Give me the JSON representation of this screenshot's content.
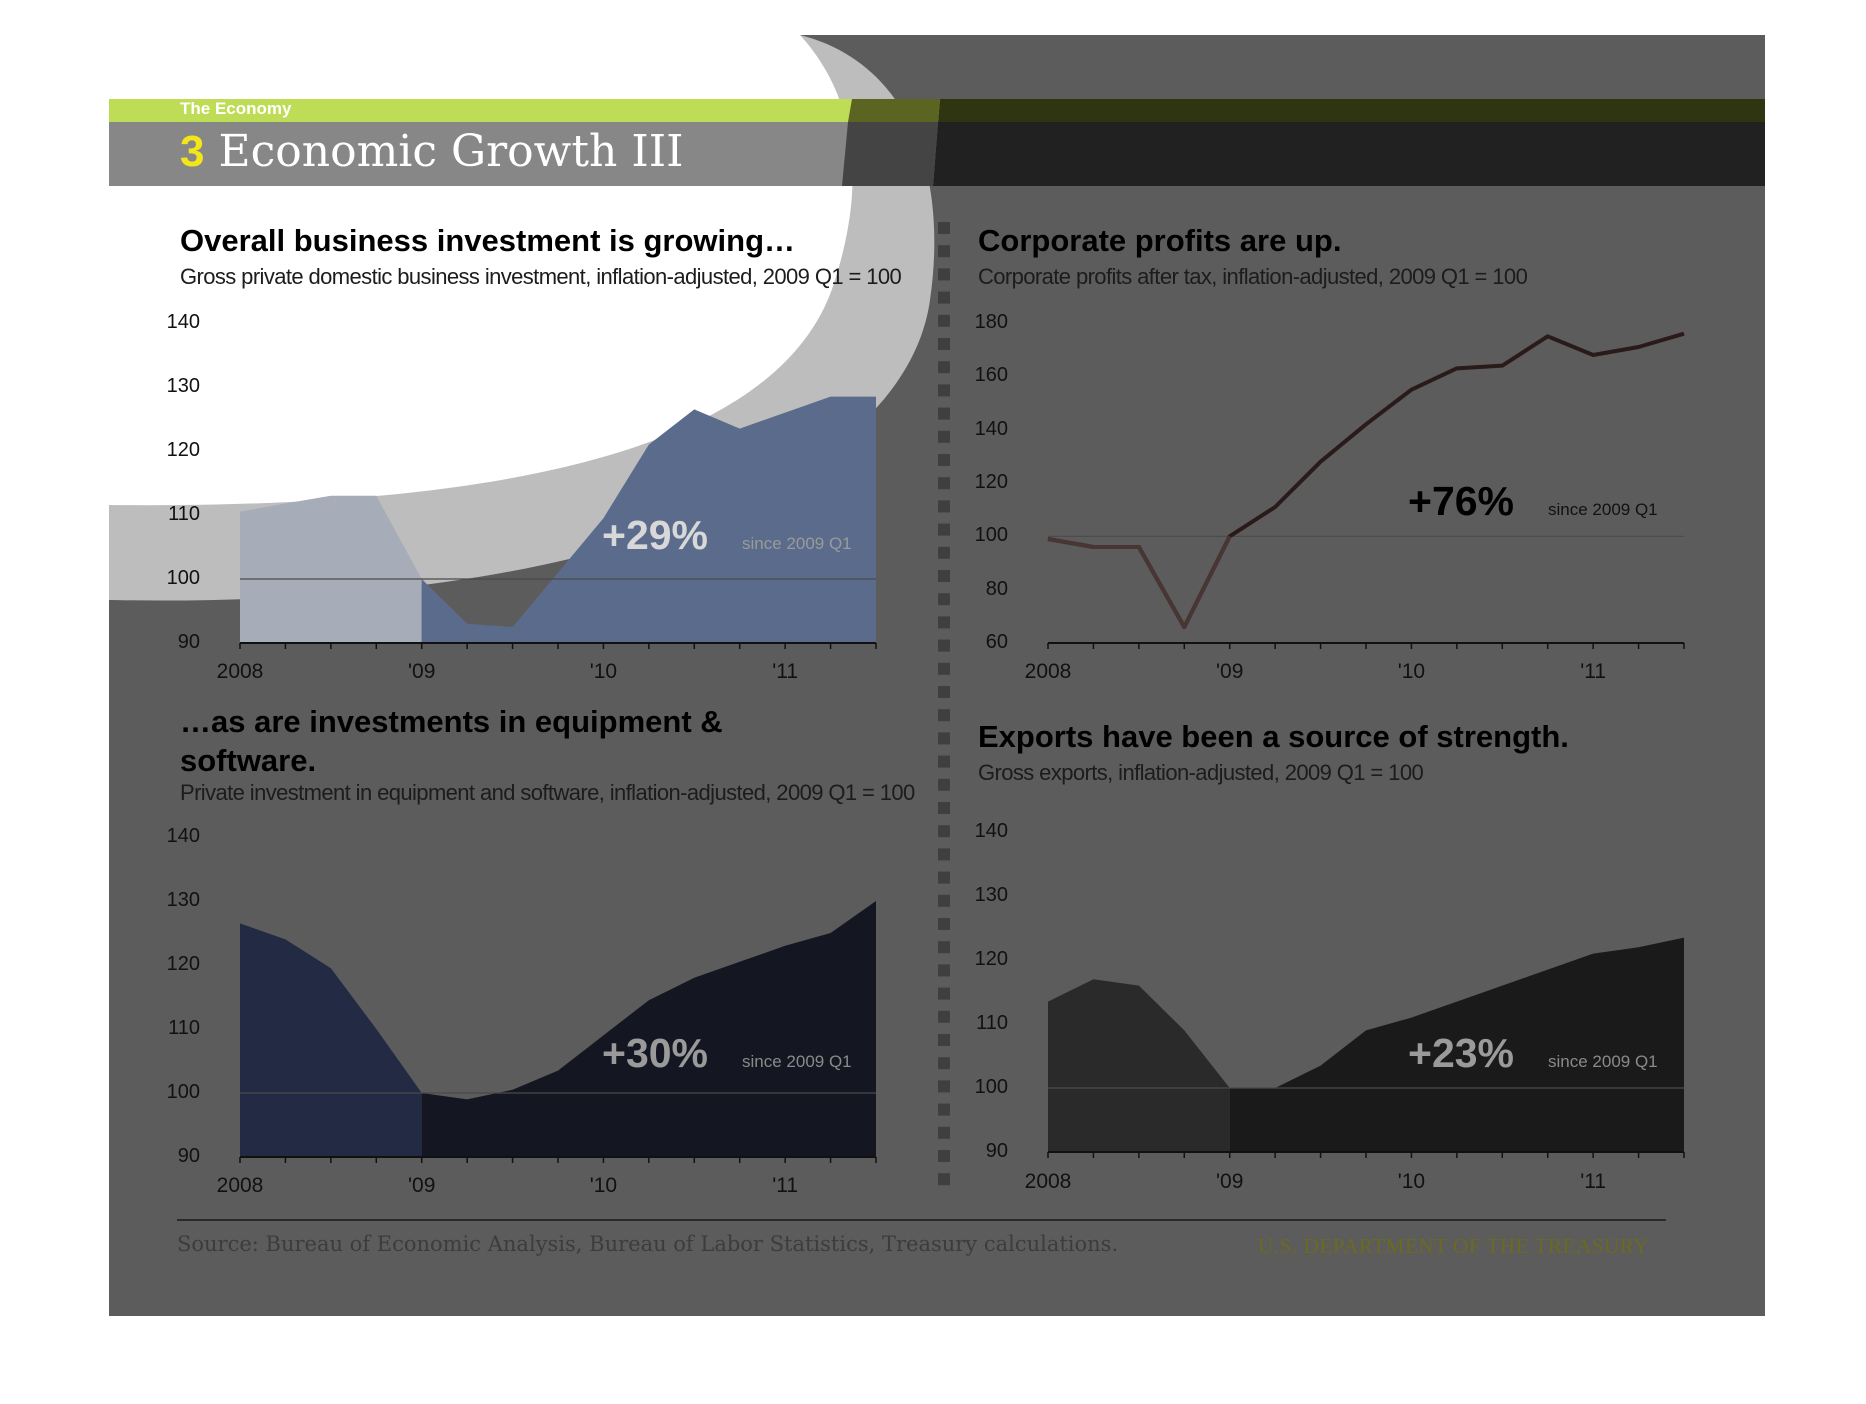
{
  "header": {
    "section": "The Economy",
    "number": "3",
    "title": "Economic Growth III",
    "accent_color": "#bedc55",
    "number_color": "#f2e61a"
  },
  "footer": {
    "source": "Source: Bureau of Economic Analysis, Bureau of Labor Statistics, Treasury calculations.",
    "department": "U.S. DEPARTMENT OF THE TREASURY"
  },
  "chart_data": [
    {
      "type": "area",
      "title": "Overall business investment is growing…",
      "subtitle": "Gross private domestic business investment, inflation-adjusted, 2009 Q1 = 100",
      "x": [
        "2008 Q1",
        "2008 Q2",
        "2008 Q3",
        "2008 Q4",
        "2009 Q1",
        "2009 Q2",
        "2009 Q3",
        "2009 Q4",
        "2010 Q1",
        "2010 Q2",
        "2010 Q3",
        "2010 Q4",
        "2011 Q1",
        "2011 Q2",
        "2011 Q3"
      ],
      "x_tick_labels": [
        "2008",
        "'09",
        "'10",
        "'11"
      ],
      "y_ticks": [
        90,
        100,
        110,
        120,
        130,
        140
      ],
      "ylim": [
        90,
        140
      ],
      "values": [
        110.5,
        111.8,
        113,
        113,
        100,
        93,
        92.5,
        101,
        109.5,
        121,
        126.5,
        123.5,
        126,
        128.5,
        128.5
      ],
      "baseline": 100,
      "callout": "+29%",
      "callout_note": "since 2009 Q1",
      "colors": {
        "pre": "#a6acb8",
        "post": "#5a6b8c"
      }
    },
    {
      "type": "line",
      "title": "Corporate profits are up.",
      "subtitle": "Corporate profits after tax, inflation-adjusted, 2009 Q1 = 100",
      "x": [
        "2008 Q1",
        "2008 Q2",
        "2008 Q3",
        "2008 Q4",
        "2009 Q1",
        "2009 Q2",
        "2009 Q3",
        "2009 Q4",
        "2010 Q1",
        "2010 Q2",
        "2010 Q3",
        "2010 Q4",
        "2011 Q1",
        "2011 Q2",
        "2011 Q3"
      ],
      "x_tick_labels": [
        "2008",
        "'09",
        "'10",
        "'11"
      ],
      "y_ticks": [
        60,
        80,
        100,
        120,
        140,
        160,
        180
      ],
      "ylim": [
        60,
        180
      ],
      "values": [
        99,
        96,
        96,
        66,
        100,
        111,
        128,
        142,
        155,
        163,
        164,
        175,
        168,
        171,
        176
      ],
      "baseline": 100,
      "callout": "+76%",
      "callout_note": "since 2009 Q1",
      "colors": {
        "pre": "#4a3535",
        "post": "#2b1a1a"
      }
    },
    {
      "type": "area",
      "title": "…as are investments in equipment & software.",
      "subtitle": "Private investment in equipment and software, inflation-adjusted, 2009 Q1 = 100",
      "x": [
        "2008 Q1",
        "2008 Q2",
        "2008 Q3",
        "2008 Q4",
        "2009 Q1",
        "2009 Q2",
        "2009 Q3",
        "2009 Q4",
        "2010 Q1",
        "2010 Q2",
        "2010 Q3",
        "2010 Q4",
        "2011 Q1",
        "2011 Q2",
        "2011 Q3"
      ],
      "x_tick_labels": [
        "2008",
        "'09",
        "'10",
        "'11"
      ],
      "y_ticks": [
        90,
        100,
        110,
        120,
        130,
        140
      ],
      "ylim": [
        90,
        140
      ],
      "values": [
        126.5,
        124,
        119.5,
        110,
        100,
        99,
        100.5,
        103.5,
        109,
        114.5,
        118,
        120.5,
        123,
        125,
        130
      ],
      "baseline": 100,
      "callout": "+30%",
      "callout_note": "since 2009 Q1",
      "colors": {
        "pre": "#222a44",
        "post": "#141722"
      }
    },
    {
      "type": "area",
      "title": "Exports have been a source of strength.",
      "subtitle": "Gross exports, inflation-adjusted, 2009 Q1 = 100",
      "x": [
        "2008 Q1",
        "2008 Q2",
        "2008 Q3",
        "2008 Q4",
        "2009 Q1",
        "2009 Q2",
        "2009 Q3",
        "2009 Q4",
        "2010 Q1",
        "2010 Q2",
        "2010 Q3",
        "2010 Q4",
        "2011 Q1",
        "2011 Q2",
        "2011 Q3"
      ],
      "x_tick_labels": [
        "2008",
        "'09",
        "'10",
        "'11"
      ],
      "y_ticks": [
        90,
        100,
        110,
        120,
        130,
        140
      ],
      "ylim": [
        90,
        140
      ],
      "values": [
        113.5,
        117,
        116,
        109,
        100,
        100,
        103.5,
        109,
        111,
        113.5,
        116,
        118.5,
        121,
        122,
        123.5
      ],
      "baseline": 100,
      "callout": "+23%",
      "callout_note": "since 2009 Q1",
      "colors": {
        "pre": "#2a2a2a",
        "post": "#1a1a1a"
      }
    }
  ]
}
